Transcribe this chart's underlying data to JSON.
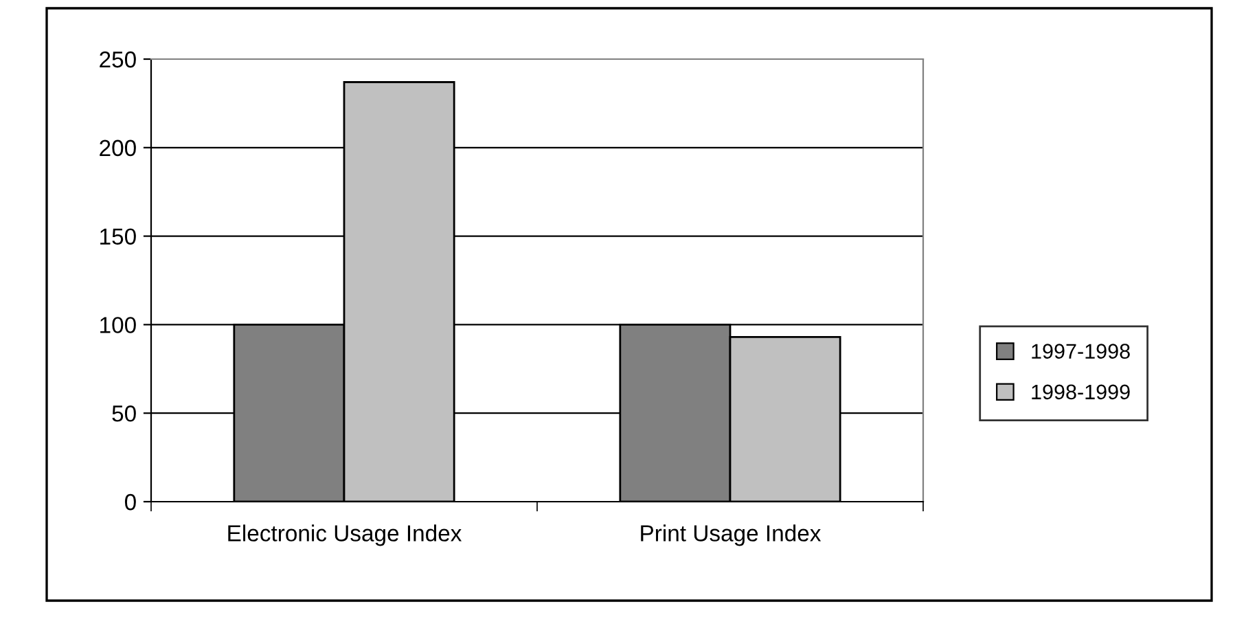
{
  "chart_data": {
    "type": "bar",
    "categories": [
      "Electronic Usage Index",
      "Print Usage Index"
    ],
    "series": [
      {
        "name": "1997-1998",
        "color": "#808080",
        "values": [
          100,
          100
        ]
      },
      {
        "name": "1998-1999",
        "color": "#c0c0c0",
        "values": [
          237,
          93
        ]
      }
    ],
    "ylim": [
      0,
      250
    ],
    "yticks": [
      0,
      50,
      100,
      150,
      200,
      250
    ],
    "grid": "y",
    "legend": "bottom right"
  }
}
